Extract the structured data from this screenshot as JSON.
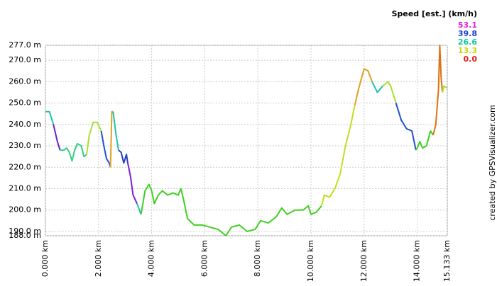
{
  "chart_data": {
    "type": "line",
    "xlim": [
      0,
      15.133
    ],
    "ylim": [
      188,
      277
    ],
    "xticks": [
      {
        "value": 0,
        "label": "0.000 km"
      },
      {
        "value": 2,
        "label": "2.000 km"
      },
      {
        "value": 4,
        "label": "4.000 km"
      },
      {
        "value": 6,
        "label": "6.000 km"
      },
      {
        "value": 8,
        "label": "8.000 km"
      },
      {
        "value": 10,
        "label": "10.000 km"
      },
      {
        "value": 12,
        "label": "12.000 km"
      },
      {
        "value": 14,
        "label": "14.000 km"
      },
      {
        "value": 15.133,
        "label": "15.133 km"
      }
    ],
    "yticks": [
      {
        "value": 188,
        "label": "188.0 m"
      },
      {
        "value": 190,
        "label": "190.0 m"
      },
      {
        "value": 200,
        "label": "200.0 m"
      },
      {
        "value": 210,
        "label": "210.0 m"
      },
      {
        "value": 220,
        "label": "220.0 m"
      },
      {
        "value": 230,
        "label": "230.0 m"
      },
      {
        "value": 240,
        "label": "240.0 m"
      },
      {
        "value": 250,
        "label": "250.0 m"
      },
      {
        "value": 260,
        "label": "260.0 m"
      },
      {
        "value": 270,
        "label": "270.0 m"
      },
      {
        "value": 277,
        "label": "277.0 m"
      }
    ],
    "grid": true,
    "legend": {
      "title": "Speed [est.] (km/h)",
      "items": [
        {
          "value": 53.1,
          "label": "53.1",
          "color": "#e020e0"
        },
        {
          "value": 39.8,
          "label": "39.8",
          "color": "#2040d0"
        },
        {
          "value": 26.6,
          "label": "26.6",
          "color": "#10c8a0"
        },
        {
          "value": 13.3,
          "label": "13.3",
          "color": "#c8d810"
        },
        {
          "value": 0,
          "label": "0.0",
          "color": "#e02020"
        }
      ]
    },
    "credit": "created by GPSVisualizer.com",
    "segments": [
      {
        "color": "#20c0b0",
        "x": [
          0,
          0.15,
          0.3
        ],
        "values": [
          246,
          246,
          240
        ]
      },
      {
        "color": "#6a20d0",
        "x": [
          0.3,
          0.45,
          0.55
        ],
        "values": [
          240,
          232,
          228
        ]
      },
      {
        "color": "#30d080",
        "x": [
          0.55,
          0.7,
          0.8,
          0.9,
          1.0,
          1.1,
          1.2,
          1.35,
          1.45,
          1.55
        ],
        "values": [
          228,
          228,
          229,
          227,
          223,
          228,
          231,
          230,
          225,
          226
        ]
      },
      {
        "color": "#a8e030",
        "x": [
          1.55,
          1.65,
          1.8,
          1.95,
          2.1
        ],
        "values": [
          226,
          235,
          241,
          241,
          237
        ]
      },
      {
        "color": "#2050d0",
        "x": [
          2.1,
          2.2,
          2.3,
          2.4,
          2.45
        ],
        "values": [
          237,
          230,
          224,
          222,
          220
        ]
      },
      {
        "color": "#e0a020",
        "x": [
          2.45,
          2.5,
          2.55
        ],
        "values": [
          220,
          246,
          246
        ]
      },
      {
        "color": "#20c0b0",
        "x": [
          2.55,
          2.65,
          2.75
        ],
        "values": [
          246,
          236,
          228
        ]
      },
      {
        "color": "#2040c0",
        "x": [
          2.75,
          2.85,
          2.95,
          3.05,
          3.1
        ],
        "values": [
          228,
          227,
          222,
          226,
          222
        ]
      },
      {
        "color": "#8020d0",
        "x": [
          3.1,
          3.2,
          3.3,
          3.45
        ],
        "values": [
          222,
          216,
          207,
          203
        ]
      },
      {
        "color": "#20c0b0",
        "x": [
          3.45,
          3.6
        ],
        "values": [
          203,
          198
        ]
      },
      {
        "color": "#40d020",
        "x": [
          3.6,
          3.75,
          3.9,
          4.0,
          4.1,
          4.25,
          4.4,
          4.6,
          4.8,
          5.0,
          5.1,
          5.2,
          5.35,
          5.6,
          5.9,
          6.2,
          6.5,
          6.8,
          7.0,
          7.3,
          7.6,
          7.9,
          8.1,
          8.4,
          8.7,
          8.9,
          9.1,
          9.4,
          9.7,
          9.9,
          10.0,
          10.2,
          10.4
        ],
        "values": [
          198,
          209,
          212,
          209,
          203,
          207,
          209,
          207,
          208,
          207,
          210,
          205,
          196,
          193,
          193,
          192,
          191,
          188,
          192,
          193,
          190,
          191,
          195,
          194,
          197,
          201,
          198,
          200,
          200,
          202,
          198,
          199,
          202
        ]
      },
      {
        "color": "#c0e020",
        "x": [
          10.4,
          10.5,
          10.7,
          10.9,
          11.1,
          11.3,
          11.5,
          11.65
        ],
        "values": [
          202,
          207,
          206,
          210,
          217,
          230,
          240,
          249
        ]
      },
      {
        "color": "#e0a020",
        "x": [
          11.65,
          11.8,
          12.0,
          12.15,
          12.3
        ],
        "values": [
          249,
          257,
          266,
          265,
          260
        ]
      },
      {
        "color": "#20c0b0",
        "x": [
          12.3,
          12.5,
          12.7
        ],
        "values": [
          260,
          255,
          258
        ]
      },
      {
        "color": "#a8e030",
        "x": [
          12.7,
          12.9,
          13.0,
          13.2
        ],
        "values": [
          258,
          260,
          258,
          250
        ]
      },
      {
        "color": "#2050d0",
        "x": [
          13.2,
          13.4,
          13.6,
          13.8,
          13.95
        ],
        "values": [
          250,
          242,
          238,
          237,
          228
        ]
      },
      {
        "color": "#40d020",
        "x": [
          13.95,
          14.0,
          14.1,
          14.2,
          14.35,
          14.5,
          14.6
        ],
        "values": [
          228,
          229,
          232,
          229,
          230,
          237,
          235
        ]
      },
      {
        "color": "#e07010",
        "x": [
          14.6,
          14.7,
          14.8,
          14.85,
          14.9,
          14.95
        ],
        "values": [
          235,
          240,
          256,
          277,
          262,
          255
        ]
      },
      {
        "color": "#a8e030",
        "x": [
          14.95,
          15.0,
          15.133
        ],
        "values": [
          255,
          258,
          257
        ]
      }
    ]
  }
}
